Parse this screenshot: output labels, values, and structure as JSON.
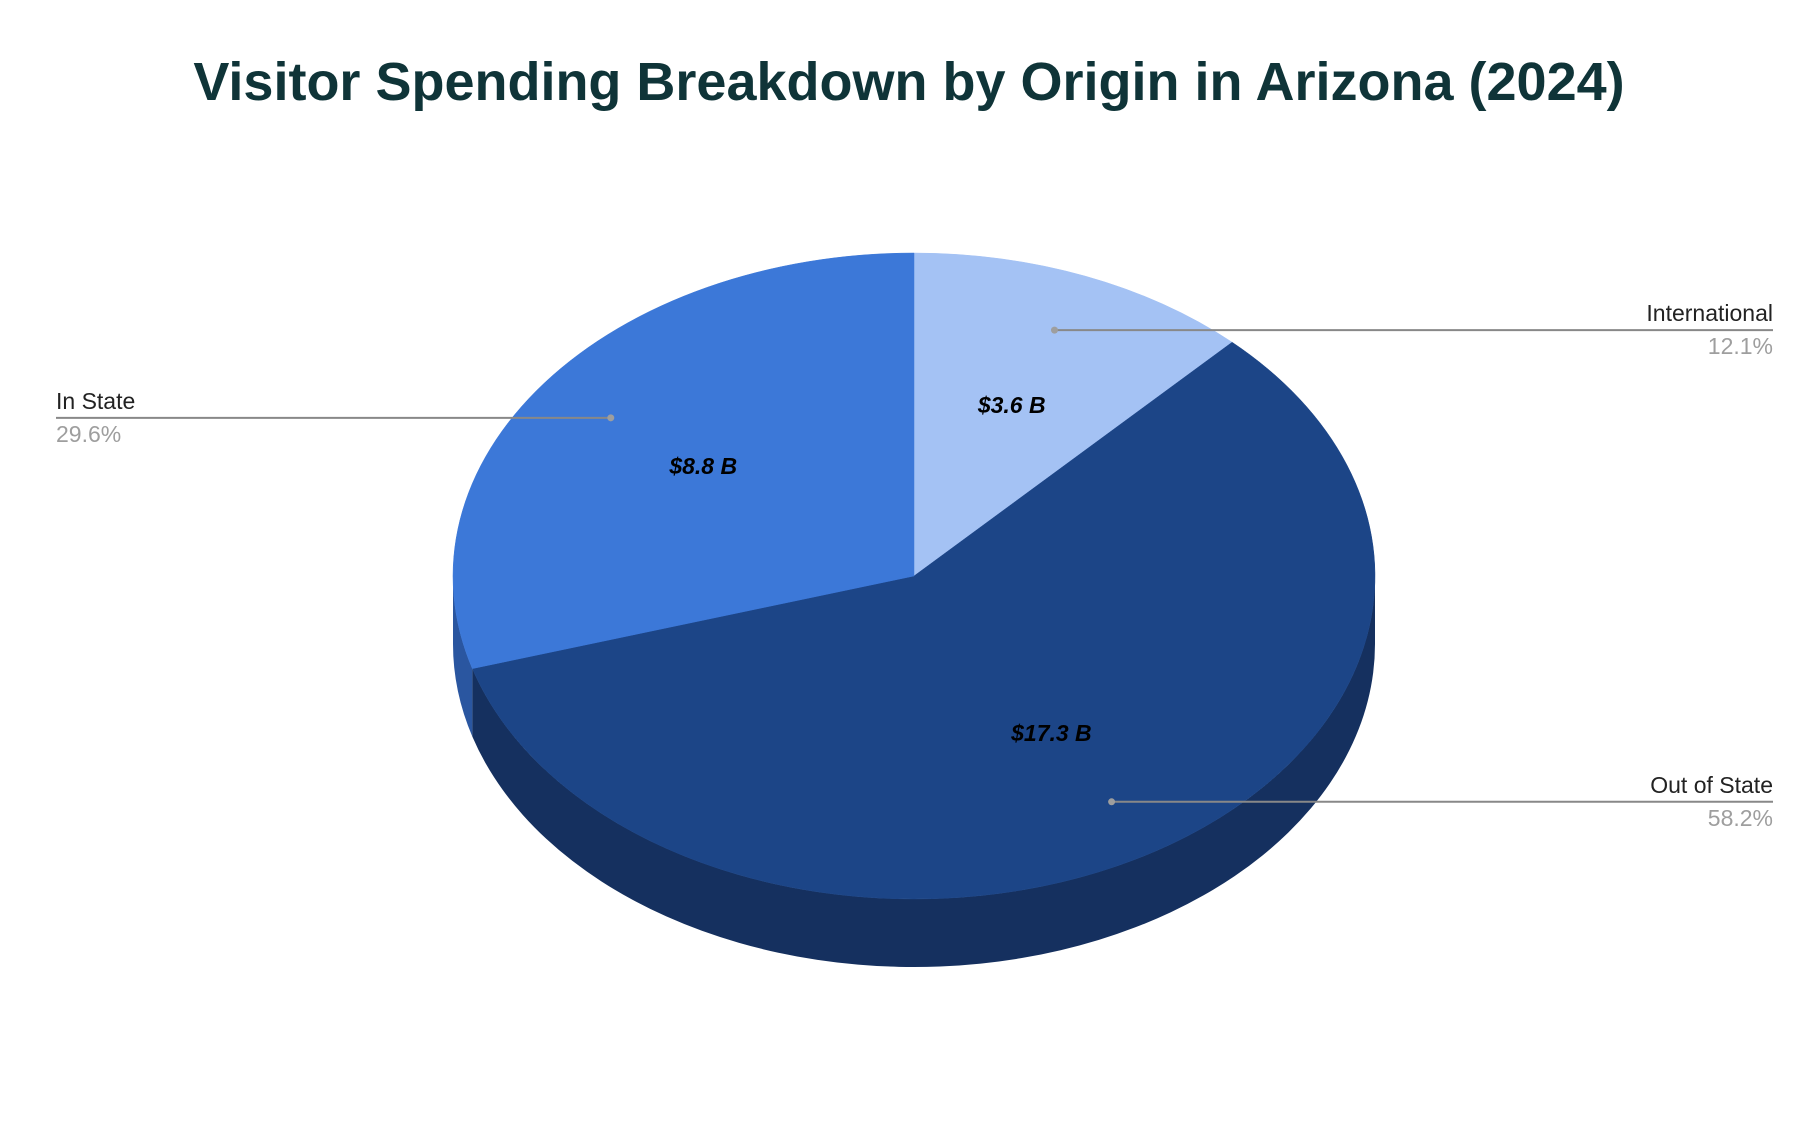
{
  "chart_data": {
    "type": "pie",
    "title": "Visitor Spending Breakdown by Origin in Arizona (2024)",
    "three_d": true,
    "start_angle_deg": 0,
    "direction": "clockwise",
    "unit": "$B",
    "slices": [
      {
        "name": "International",
        "value": 3.6,
        "value_label": "$3.6 B",
        "percent_label": "12.1%",
        "color": "#a4c2f4",
        "side_color": "#7f9fd4"
      },
      {
        "name": "Out of State",
        "value": 17.3,
        "value_label": "$17.3 B",
        "percent_label": "58.2%",
        "color": "#1c4587",
        "side_color": "#15305f"
      },
      {
        "name": "In State",
        "value": 8.8,
        "value_label": "$8.8 B",
        "percent_label": "29.6%",
        "color": "#3c78d8",
        "side_color": "#2a56a0"
      }
    ],
    "legend": "none",
    "labels_position": "outside-with-leaders"
  },
  "colors": {
    "title": "#0f3438",
    "background": "#ffffff",
    "leader_line": "#888888",
    "percent_text": "#9e9e9e"
  }
}
